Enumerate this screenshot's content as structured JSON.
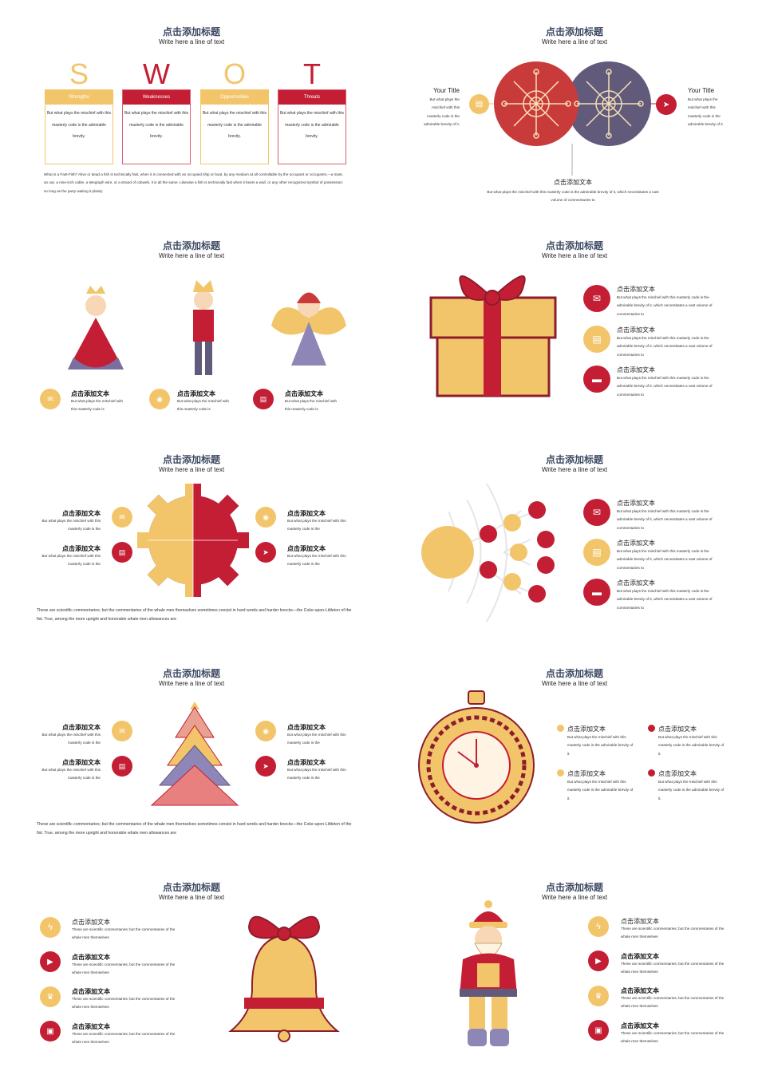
{
  "colors": {
    "yellow": "#f3c56b",
    "red": "#c41e35",
    "navy": "#3d4a63",
    "purple": "#625a7a",
    "coral": "#c93b3b"
  },
  "common": {
    "title": "点击添加标题",
    "subtitle": "Write here a line of text",
    "heading": "点击添加文本"
  },
  "s1": {
    "swot": [
      {
        "letter": "S",
        "label": "Strengths"
      },
      {
        "letter": "W",
        "label": "Weaknesses"
      },
      {
        "letter": "O",
        "label": "Opportunities"
      },
      {
        "letter": "T",
        "label": "Threats"
      }
    ],
    "box_text": "But what plays the mischief with this masterly code is the admirable brevity.",
    "paragraph": "What is a Fast-Fish? Alive or dead a fish is technically fast, when it is connected with an occupied ship or boat, by any medium at all controllable by the occupant or occupants,—a mast, an oar, a nine-inch cable, a telegraph wire, or a strand of cobweb, it is all the same. Likewise a fish is technically fast when it bears a waif, or any other recognized symbol of possession; so long as the party waiting it plainly"
  },
  "s2": {
    "left_title": "Your Title",
    "right_title": "Your Title",
    "side_text": "But what plays the mischief with this masterly code is the admirable brevity of it.",
    "bottom_text": "But what plays the mischief with this masterly code is the admirable brevity of it, which necessitates a vast volume of commentaries to",
    "icons": [
      "chat-icon",
      "paper-plane-icon"
    ]
  },
  "s3": {
    "text": "But what plays the mischief with this masterly code is",
    "icons": [
      "envelope-icon",
      "camera-icon",
      "chat-icon"
    ]
  },
  "long_text": "But what plays the mischief with this masterly code is the admirable brevity of it, which necessitates a vast volume of commentaries to",
  "s4": {
    "icons": [
      "envelope-icon",
      "chat-icon",
      "card-icon"
    ]
  },
  "s5": {
    "text": "But what plays the mischief with this masterly code is the",
    "icons": [
      "envelope-icon",
      "chat-icon",
      "camera-icon",
      "paper-plane-icon"
    ],
    "paragraph": "These are scientific commentaries; but the commentaries of the whale men themselves sometimes consist in hard words and harder knocks—the Coke-upon-Littleton of the fist. True, among the more upright and honorable whale men allowances are"
  },
  "s8": {
    "text": "But what plays the mischief with this masterly code is the admirable brevity of it."
  },
  "s9": {
    "text": "These are scientific commentaries; but the commentaries of the whale men themselves",
    "icons": [
      "lightning-icon",
      "play-icon",
      "trophy-icon",
      "bus-icon"
    ]
  }
}
